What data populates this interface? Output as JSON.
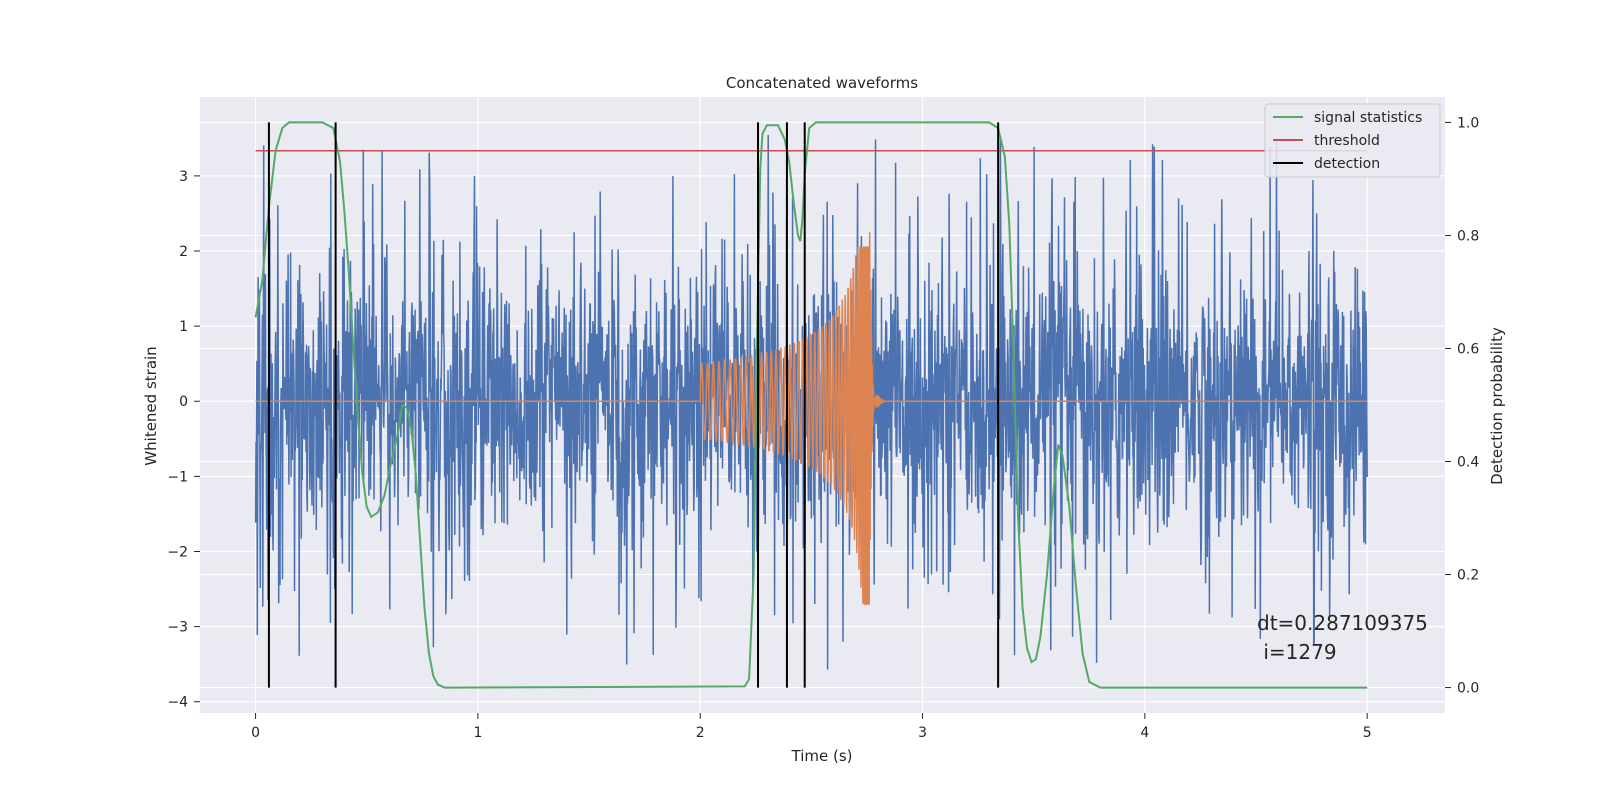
{
  "chart_data": {
    "type": "line",
    "title": "Concatenated waveforms",
    "xlabel": "Time (s)",
    "ylabel_left": "Whitened strain",
    "ylabel_right": "Detection probability",
    "xlim": [
      -0.25,
      5.35
    ],
    "ylim_left": [
      -4.15,
      4.05
    ],
    "ylim_right": [
      -0.045,
      1.045
    ],
    "x_ticks": [
      0,
      1,
      2,
      3,
      4,
      5
    ],
    "x_tick_labels": [
      "0",
      "1",
      "2",
      "3",
      "4",
      "5"
    ],
    "y_left_ticks": [
      -4,
      -3,
      -2,
      -1,
      0,
      1,
      2,
      3
    ],
    "y_left_tick_labels": [
      "−4",
      "−3",
      "−2",
      "−1",
      "0",
      "1",
      "2",
      "3"
    ],
    "y_right_ticks": [
      0.0,
      0.2,
      0.4,
      0.6,
      0.8,
      1.0
    ],
    "y_right_tick_labels": [
      "0.0",
      "0.2",
      "0.4",
      "0.6",
      "0.8",
      "1.0"
    ],
    "grid": true,
    "legend_position": "top-right",
    "legend": [
      {
        "label": "signal statistics",
        "color": "#55a868"
      },
      {
        "label": "threshold",
        "color": "#c44e52"
      },
      {
        "label": "detection",
        "color": "#000000"
      }
    ],
    "annotation": {
      "line1": "dt=0.287109375",
      "line2": " i=1279"
    },
    "series": [
      {
        "kind": "noise",
        "axis": "left",
        "color": "#4c72b0",
        "x_range": [
          0,
          5
        ],
        "amplitude_envelope": "noise strain values roughly between -3.7 and 3.6"
      },
      {
        "kind": "chirp",
        "axis": "left",
        "color": "#dd8452",
        "x_start": 2.0,
        "x_merger": 2.76,
        "x_end": 5.0,
        "start_amplitude": 0.5,
        "peak_high": 2.05,
        "peak_low": -2.7
      },
      {
        "name": "signal statistics",
        "axis": "right",
        "color": "#55a868",
        "points": [
          [
            0.0,
            0.655
          ],
          [
            0.03,
            0.72
          ],
          [
            0.06,
            0.85
          ],
          [
            0.09,
            0.95
          ],
          [
            0.12,
            0.99
          ],
          [
            0.15,
            1.0
          ],
          [
            0.3,
            1.0
          ],
          [
            0.35,
            0.99
          ],
          [
            0.38,
            0.93
          ],
          [
            0.4,
            0.84
          ],
          [
            0.42,
            0.73
          ],
          [
            0.44,
            0.6
          ],
          [
            0.46,
            0.48
          ],
          [
            0.48,
            0.38
          ],
          [
            0.5,
            0.32
          ],
          [
            0.52,
            0.302
          ],
          [
            0.55,
            0.31
          ],
          [
            0.58,
            0.34
          ],
          [
            0.61,
            0.4
          ],
          [
            0.64,
            0.45
          ],
          [
            0.66,
            0.5
          ],
          [
            0.68,
            0.495
          ],
          [
            0.7,
            0.46
          ],
          [
            0.72,
            0.38
          ],
          [
            0.74,
            0.26
          ],
          [
            0.76,
            0.14
          ],
          [
            0.78,
            0.06
          ],
          [
            0.8,
            0.02
          ],
          [
            0.82,
            0.005
          ],
          [
            0.85,
            0.0
          ],
          [
            2.2,
            0.002
          ],
          [
            2.22,
            0.015
          ],
          [
            2.24,
            0.2
          ],
          [
            2.255,
            0.6
          ],
          [
            2.27,
            0.92
          ],
          [
            2.28,
            0.98
          ],
          [
            2.3,
            0.995
          ],
          [
            2.35,
            0.995
          ],
          [
            2.38,
            0.97
          ],
          [
            2.4,
            0.93
          ],
          [
            2.42,
            0.86
          ],
          [
            2.44,
            0.8
          ],
          [
            2.45,
            0.79
          ],
          [
            2.46,
            0.83
          ],
          [
            2.47,
            0.91
          ],
          [
            2.49,
            0.99
          ],
          [
            2.52,
            1.0
          ],
          [
            3.3,
            1.0
          ],
          [
            3.34,
            0.99
          ],
          [
            3.37,
            0.94
          ],
          [
            3.39,
            0.82
          ],
          [
            3.41,
            0.58
          ],
          [
            3.43,
            0.3
          ],
          [
            3.45,
            0.14
          ],
          [
            3.47,
            0.07
          ],
          [
            3.49,
            0.045
          ],
          [
            3.51,
            0.05
          ],
          [
            3.53,
            0.09
          ],
          [
            3.56,
            0.2
          ],
          [
            3.59,
            0.35
          ],
          [
            3.61,
            0.43
          ],
          [
            3.63,
            0.41
          ],
          [
            3.66,
            0.32
          ],
          [
            3.69,
            0.18
          ],
          [
            3.72,
            0.06
          ],
          [
            3.75,
            0.01
          ],
          [
            3.8,
            0.0
          ],
          [
            5.0,
            0.0
          ]
        ]
      },
      {
        "name": "threshold",
        "axis": "right",
        "color": "#c44e52",
        "x_range": [
          0,
          5
        ],
        "value": 0.95
      },
      {
        "name": "detection",
        "axis": "right",
        "color": "#000000",
        "x": [
          0.06,
          0.36,
          2.26,
          2.39,
          2.47,
          3.34
        ],
        "ymin": 0.0,
        "ymax": 1.0
      }
    ]
  }
}
